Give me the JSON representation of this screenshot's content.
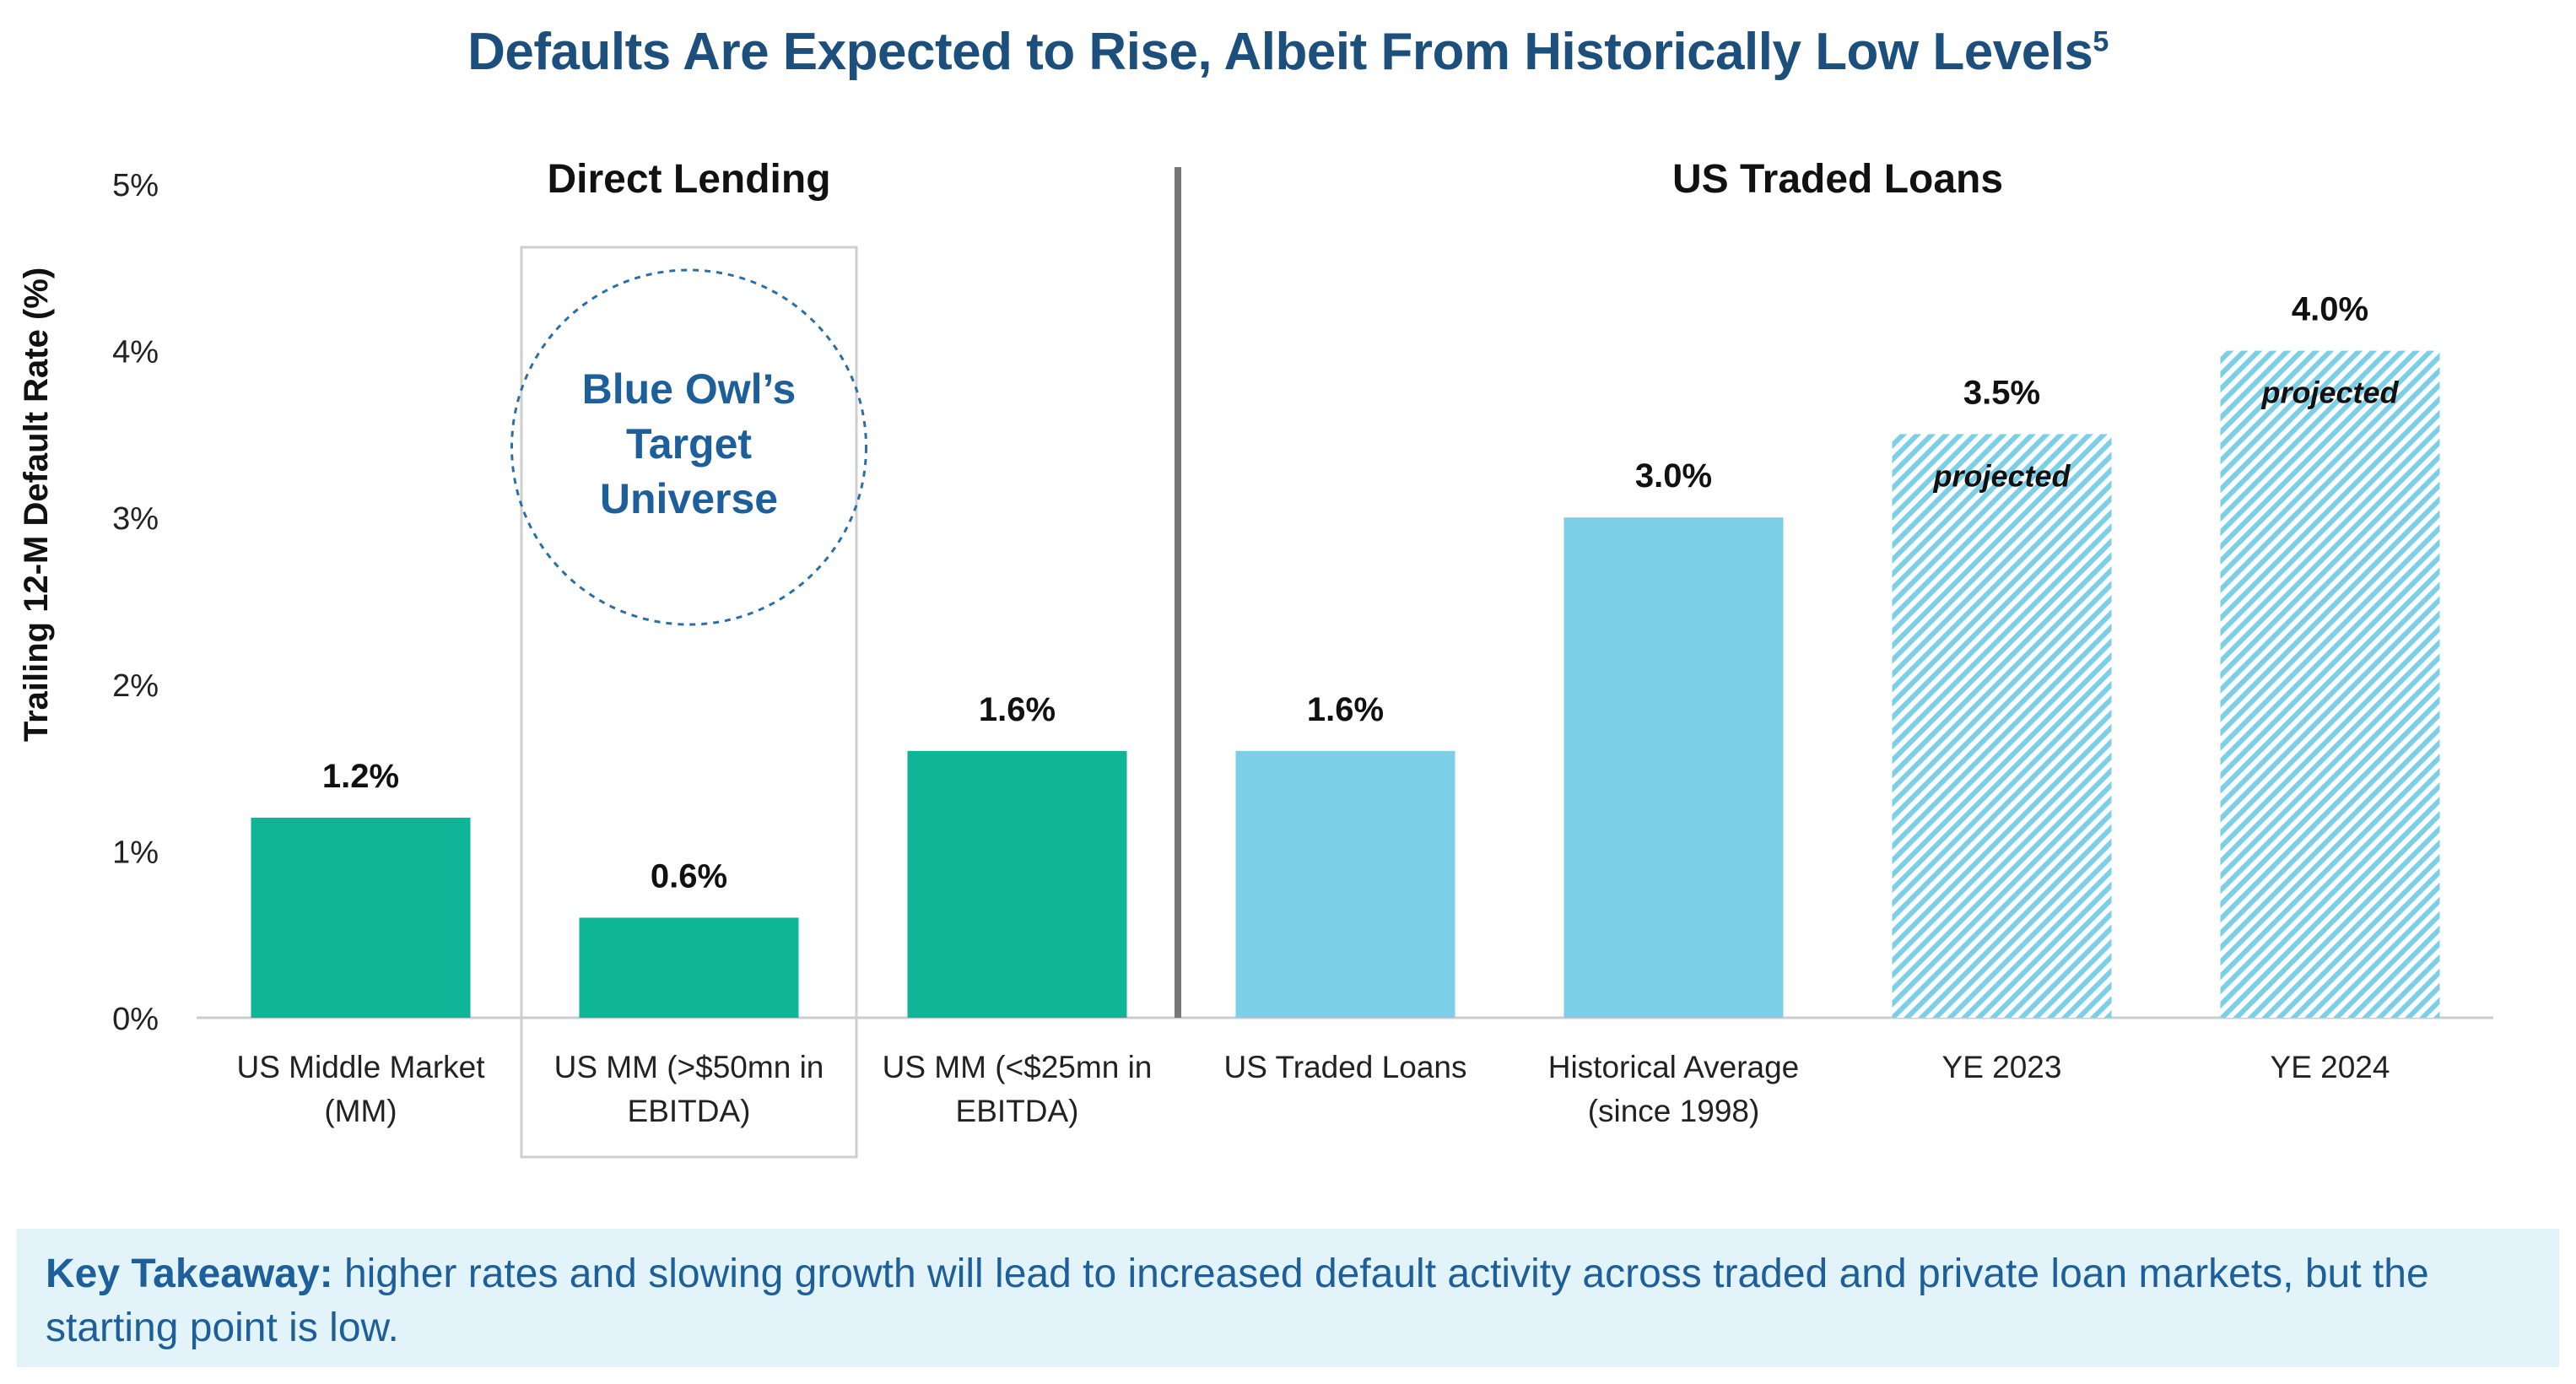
{
  "title": {
    "text": "Defaults Are Expected to Rise, Albeit From Historically Low Levels",
    "footnote": "5"
  },
  "takeaway": {
    "label": "Key Takeaway:",
    "text": " higher rates and slowing growth will lead to increased default activity across traded and private loan markets, but the starting point is low."
  },
  "highlight": {
    "text_lines": [
      "Blue Owl’s",
      "Target",
      "Universe"
    ]
  },
  "colors": {
    "direct_lending": "#0fb597",
    "traded_loans": "#7bcfe6",
    "projected_stripe": "#7bcfe6",
    "title": "#1d4f7c",
    "highlight_text": "#1d5f9b"
  },
  "chart_data": {
    "type": "bar",
    "ylabel": "Trailing 12-M Default Rate (%)",
    "ylim": [
      0,
      5
    ],
    "y_ticks": [
      "0%",
      "1%",
      "2%",
      "3%",
      "4%",
      "5%"
    ],
    "grid": false,
    "groups": [
      {
        "name": "Direct Lending",
        "categories": [
          0,
          1,
          2
        ]
      },
      {
        "name": "US Traded Loans",
        "categories": [
          3,
          4,
          5,
          6
        ]
      }
    ],
    "categories": [
      [
        "US Middle Market",
        "(MM)"
      ],
      [
        "US MM (>$50mn in",
        "EBITDA)"
      ],
      [
        "US MM (<$25mn in",
        "EBITDA)"
      ],
      [
        "US Traded Loans"
      ],
      [
        "Historical Average",
        "(since 1998)"
      ],
      [
        "YE 2023"
      ],
      [
        "YE 2024"
      ]
    ],
    "values": [
      1.2,
      0.6,
      1.6,
      1.6,
      3.0,
      3.5,
      4.0
    ],
    "value_labels": [
      "1.2%",
      "0.6%",
      "1.6%",
      "1.6%",
      "3.0%",
      "3.5%",
      "4.0%"
    ],
    "projected": [
      false,
      false,
      false,
      false,
      false,
      true,
      true
    ],
    "projected_label": "projected",
    "highlighted_category": 1
  }
}
